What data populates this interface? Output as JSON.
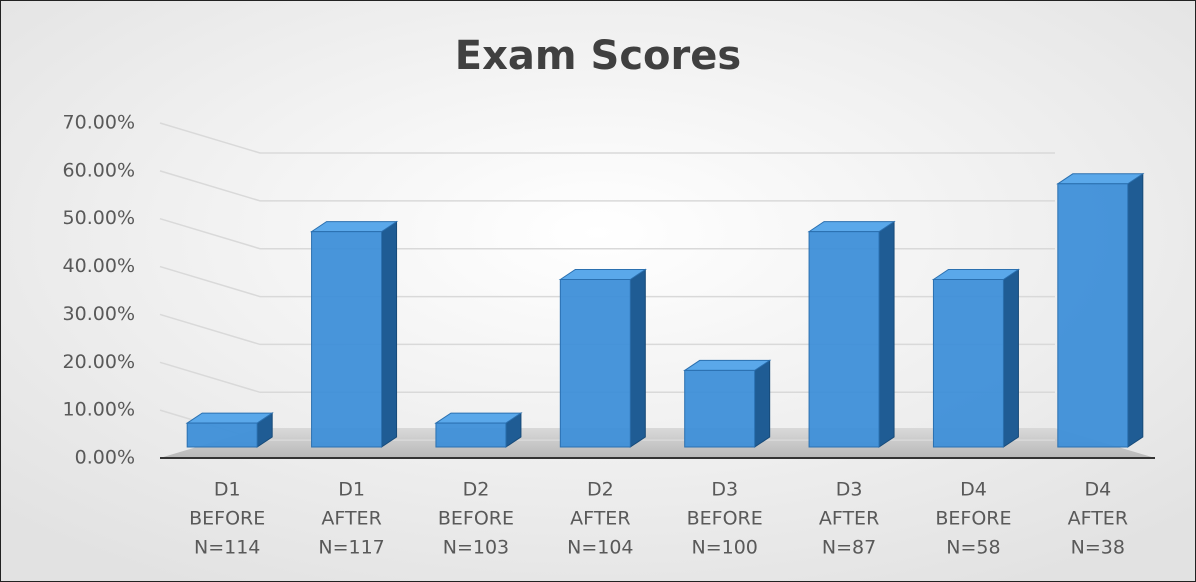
{
  "chart_data": {
    "type": "bar3d",
    "title": "Exam Scores",
    "categories": [
      [
        "D1",
        "BEFORE",
        "N=114"
      ],
      [
        "D1",
        "AFTER",
        "N=117"
      ],
      [
        "D2",
        "BEFORE",
        "N=103"
      ],
      [
        "D2",
        "AFTER",
        "N=104"
      ],
      [
        "D3",
        "BEFORE",
        "N=100"
      ],
      [
        "D3",
        "AFTER",
        "N=87"
      ],
      [
        "D4",
        "BEFORE",
        "N=58"
      ],
      [
        "D4",
        "AFTER",
        "N=38"
      ]
    ],
    "values": [
      5,
      45,
      5,
      35,
      16,
      45,
      35,
      55
    ],
    "color": "#3e8fd8",
    "ylim": [
      0,
      70
    ],
    "yticks": [
      {
        "value": 0,
        "label": "0.00%"
      },
      {
        "value": 10,
        "label": "10.00%"
      },
      {
        "value": 20,
        "label": "20.00%"
      },
      {
        "value": 30,
        "label": "30.00%"
      },
      {
        "value": 40,
        "label": "40.00%"
      },
      {
        "value": 50,
        "label": "50.00%"
      },
      {
        "value": 60,
        "label": "60.00%"
      },
      {
        "value": 70,
        "label": "70.00%"
      }
    ],
    "grid": true
  }
}
